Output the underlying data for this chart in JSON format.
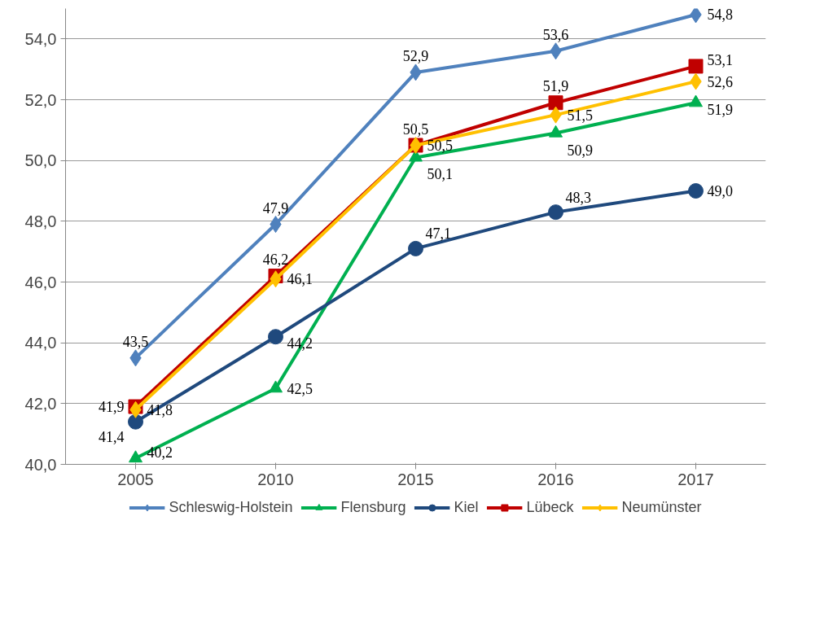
{
  "chart_data": {
    "type": "line",
    "categories": [
      "2005",
      "2010",
      "2015",
      "2016",
      "2017"
    ],
    "series": [
      {
        "name": "Schleswig-Holstein",
        "color": "#4f81bd",
        "marker": "diamond",
        "values": [
          43.5,
          47.9,
          52.9,
          53.6,
          54.8
        ],
        "value_labels": [
          "43,5",
          "47,9",
          "52,9",
          "53,6",
          "54,8"
        ]
      },
      {
        "name": "Flensburg",
        "color": "#00b050",
        "marker": "triangle",
        "values": [
          40.2,
          42.5,
          50.1,
          50.9,
          51.9
        ],
        "value_labels": [
          "40,2",
          "42,5",
          "50,1",
          "50,9",
          "51,9"
        ]
      },
      {
        "name": "Kiel",
        "color": "#1f497d",
        "marker": "circle",
        "values": [
          41.4,
          44.2,
          47.1,
          48.3,
          49.0
        ],
        "value_labels": [
          "41,4",
          "44,2",
          "47,1",
          "48,3",
          "49,0"
        ]
      },
      {
        "name": "Lübeck",
        "color": "#c00000",
        "marker": "square",
        "values": [
          41.9,
          46.2,
          50.5,
          51.9,
          53.1
        ],
        "value_labels": [
          "41,9",
          "46,2",
          "50,5",
          "51,9",
          "53,1"
        ]
      },
      {
        "name": "Neumünster",
        "color": "#ffc000",
        "marker": "diamond",
        "values": [
          41.8,
          46.1,
          50.5,
          51.5,
          52.6
        ],
        "value_labels": [
          "41,8",
          "46,1",
          "50,5",
          "51,5",
          "52,6"
        ]
      }
    ],
    "ylim": [
      40,
      55
    ],
    "yticks": [
      {
        "value": 40,
        "label": "40,0"
      },
      {
        "value": 42,
        "label": "42,0"
      },
      {
        "value": 44,
        "label": "44,0"
      },
      {
        "value": 46,
        "label": "46,0"
      },
      {
        "value": 48,
        "label": "48,0"
      },
      {
        "value": 50,
        "label": "50,0"
      },
      {
        "value": 52,
        "label": "52,0"
      },
      {
        "value": 54,
        "label": "54,0"
      }
    ],
    "grid": "y",
    "legend": "bottom",
    "line_style": "solid"
  }
}
